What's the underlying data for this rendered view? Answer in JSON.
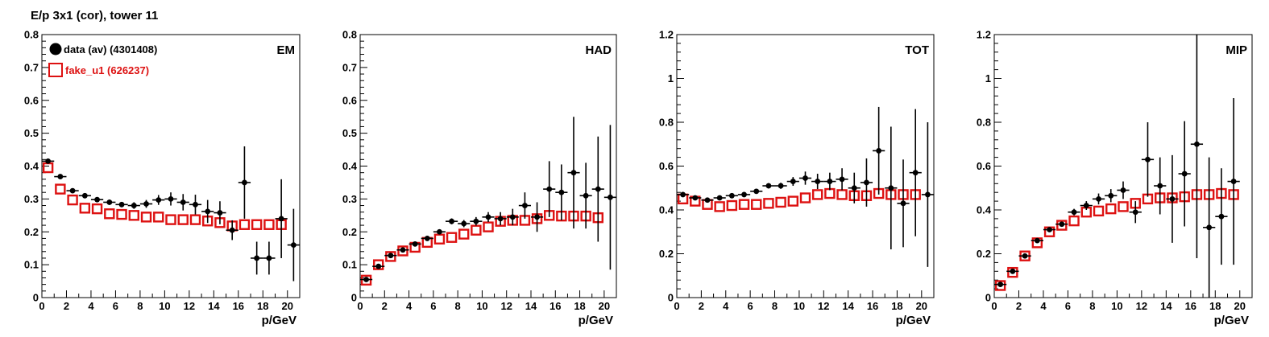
{
  "title": "E/p 3x1 (cor), tower 11",
  "colors": {
    "data": "#000000",
    "fake": "#dd1111",
    "axis": "#000000",
    "background": "#ffffff"
  },
  "legend": [
    {
      "label": "data (av) (4301408)",
      "marker": "filled-circle",
      "color": "#000000"
    },
    {
      "label": "fake_u1 (626237)",
      "marker": "open-square",
      "color": "#dd1111"
    }
  ],
  "chart_data": [
    {
      "type": "scatter",
      "panel_label": "EM",
      "xlabel": "p/GeV",
      "ylabel": "",
      "xlim": [
        0,
        21
      ],
      "ylim": [
        0,
        0.8
      ],
      "xticks": [
        0,
        2,
        4,
        6,
        8,
        10,
        12,
        14,
        16,
        18,
        20
      ],
      "yticks": [
        0,
        0.1,
        0.2,
        0.3,
        0.4,
        0.5,
        0.6,
        0.7,
        0.8
      ],
      "ytick_labels": [
        "0",
        "0.1",
        "0.2",
        "0.3",
        "0.4",
        "0.5",
        "0.6",
        "0.7",
        "0.8"
      ],
      "grid": false,
      "legend_position": "top-left",
      "series": [
        {
          "name": "data (av) (4301408)",
          "marker": "filled-circle",
          "x": [
            0.5,
            1.5,
            2.5,
            3.5,
            4.5,
            5.5,
            6.5,
            7.5,
            8.5,
            9.5,
            10.5,
            11.5,
            12.5,
            13.5,
            14.5,
            15.5,
            16.5,
            17.5,
            18.5,
            19.5,
            20.5
          ],
          "y": [
            0.415,
            0.368,
            0.325,
            0.31,
            0.298,
            0.29,
            0.283,
            0.28,
            0.285,
            0.297,
            0.3,
            0.29,
            0.283,
            0.262,
            0.258,
            0.205,
            0.35,
            0.12,
            0.12,
            0.24,
            0.16
          ],
          "yerr": [
            0.005,
            0.005,
            0.005,
            0.006,
            0.007,
            0.008,
            0.008,
            0.01,
            0.012,
            0.015,
            0.02,
            0.025,
            0.03,
            0.035,
            0.035,
            0.03,
            0.11,
            0.05,
            0.05,
            0.12,
            0.11
          ]
        },
        {
          "name": "fake_u1 (626237)",
          "marker": "open-square",
          "x": [
            0.5,
            1.5,
            2.5,
            3.5,
            4.5,
            5.5,
            6.5,
            7.5,
            8.5,
            9.5,
            10.5,
            11.5,
            12.5,
            13.5,
            14.5,
            15.5,
            16.5,
            17.5,
            18.5,
            19.5
          ],
          "y": [
            0.395,
            0.33,
            0.297,
            0.272,
            0.27,
            0.255,
            0.253,
            0.25,
            0.245,
            0.245,
            0.237,
            0.237,
            0.237,
            0.233,
            0.228,
            0.218,
            0.222,
            0.222,
            0.222,
            0.222
          ]
        }
      ]
    },
    {
      "type": "scatter",
      "panel_label": "HAD",
      "xlabel": "p/GeV",
      "ylabel": "",
      "xlim": [
        0,
        21
      ],
      "ylim": [
        0,
        0.8
      ],
      "xticks": [
        0,
        2,
        4,
        6,
        8,
        10,
        12,
        14,
        16,
        18,
        20
      ],
      "yticks": [
        0,
        0.1,
        0.2,
        0.3,
        0.4,
        0.5,
        0.6,
        0.7,
        0.8
      ],
      "ytick_labels": [
        "0",
        "0.1",
        "0.2",
        "0.3",
        "0.4",
        "0.5",
        "0.6",
        "0.7",
        "0.8"
      ],
      "grid": false,
      "series": [
        {
          "name": "data (av) (4301408)",
          "marker": "filled-circle",
          "x": [
            0.5,
            1.5,
            2.5,
            3.5,
            4.5,
            5.5,
            6.5,
            7.5,
            8.5,
            9.5,
            10.5,
            11.5,
            12.5,
            13.5,
            14.5,
            15.5,
            16.5,
            17.5,
            18.5,
            19.5,
            20.5
          ],
          "y": [
            0.055,
            0.095,
            0.128,
            0.145,
            0.163,
            0.18,
            0.2,
            0.232,
            0.225,
            0.232,
            0.245,
            0.24,
            0.245,
            0.28,
            0.245,
            0.33,
            0.32,
            0.38,
            0.31,
            0.33,
            0.305
          ],
          "yerr": [
            0.004,
            0.005,
            0.005,
            0.006,
            0.006,
            0.007,
            0.008,
            0.009,
            0.011,
            0.013,
            0.015,
            0.02,
            0.025,
            0.04,
            0.045,
            0.085,
            0.085,
            0.17,
            0.1,
            0.16,
            0.22
          ]
        },
        {
          "name": "fake_u1 (626237)",
          "marker": "open-square",
          "x": [
            0.5,
            1.5,
            2.5,
            3.5,
            4.5,
            5.5,
            6.5,
            7.5,
            8.5,
            9.5,
            10.5,
            11.5,
            12.5,
            13.5,
            14.5,
            15.5,
            16.5,
            17.5,
            18.5,
            19.5
          ],
          "y": [
            0.053,
            0.1,
            0.125,
            0.142,
            0.153,
            0.168,
            0.178,
            0.183,
            0.193,
            0.205,
            0.215,
            0.232,
            0.235,
            0.235,
            0.24,
            0.25,
            0.248,
            0.248,
            0.248,
            0.243
          ]
        }
      ]
    },
    {
      "type": "scatter",
      "panel_label": "TOT",
      "xlabel": "p/GeV",
      "ylabel": "",
      "xlim": [
        0,
        21
      ],
      "ylim": [
        0,
        1.2
      ],
      "xticks": [
        0,
        2,
        4,
        6,
        8,
        10,
        12,
        14,
        16,
        18,
        20
      ],
      "yticks": [
        0,
        0.2,
        0.4,
        0.6,
        0.8,
        1.0,
        1.2
      ],
      "ytick_labels": [
        "0",
        "0.2",
        "0.4",
        "0.6",
        "0.8",
        "1",
        "1.2"
      ],
      "grid": false,
      "series": [
        {
          "name": "data (av) (4301408)",
          "marker": "filled-circle",
          "x": [
            0.5,
            1.5,
            2.5,
            3.5,
            4.5,
            5.5,
            6.5,
            7.5,
            8.5,
            9.5,
            10.5,
            11.5,
            12.5,
            13.5,
            14.5,
            15.5,
            16.5,
            17.5,
            18.5,
            19.5,
            20.5
          ],
          "y": [
            0.47,
            0.455,
            0.445,
            0.455,
            0.465,
            0.47,
            0.485,
            0.51,
            0.51,
            0.53,
            0.545,
            0.53,
            0.53,
            0.54,
            0.5,
            0.525,
            0.67,
            0.5,
            0.43,
            0.57,
            0.47
          ],
          "yerr": [
            0.005,
            0.006,
            0.006,
            0.007,
            0.008,
            0.009,
            0.01,
            0.012,
            0.014,
            0.02,
            0.03,
            0.035,
            0.04,
            0.05,
            0.07,
            0.11,
            0.2,
            0.28,
            0.2,
            0.29,
            0.33
          ]
        },
        {
          "name": "fake_u1 (626237)",
          "marker": "open-square",
          "x": [
            0.5,
            1.5,
            2.5,
            3.5,
            4.5,
            5.5,
            6.5,
            7.5,
            8.5,
            9.5,
            10.5,
            11.5,
            12.5,
            13.5,
            14.5,
            15.5,
            16.5,
            17.5,
            18.5,
            19.5
          ],
          "y": [
            0.45,
            0.44,
            0.425,
            0.415,
            0.42,
            0.425,
            0.425,
            0.43,
            0.435,
            0.44,
            0.455,
            0.47,
            0.475,
            0.47,
            0.465,
            0.465,
            0.475,
            0.47,
            0.47,
            0.47
          ]
        }
      ]
    },
    {
      "type": "scatter",
      "panel_label": "MIP",
      "xlabel": "p/GeV",
      "ylabel": "",
      "xlim": [
        0,
        21
      ],
      "ylim": [
        0,
        1.2
      ],
      "xticks": [
        0,
        2,
        4,
        6,
        8,
        10,
        12,
        14,
        16,
        18,
        20
      ],
      "yticks": [
        0,
        0.2,
        0.4,
        0.6,
        0.8,
        1.0,
        1.2
      ],
      "ytick_labels": [
        "0",
        "0.2",
        "0.4",
        "0.6",
        "0.8",
        "1",
        "1.2"
      ],
      "grid": false,
      "series": [
        {
          "name": "data (av) (4301408)",
          "marker": "filled-circle",
          "x": [
            0.5,
            1.5,
            2.5,
            3.5,
            4.5,
            5.5,
            6.5,
            7.5,
            8.5,
            9.5,
            10.5,
            11.5,
            12.5,
            13.5,
            14.5,
            15.5,
            16.5,
            17.5,
            18.5,
            19.5
          ],
          "y": [
            0.06,
            0.12,
            0.19,
            0.26,
            0.31,
            0.335,
            0.39,
            0.42,
            0.45,
            0.465,
            0.49,
            0.39,
            0.63,
            0.51,
            0.45,
            0.565,
            0.7,
            0.32,
            0.37,
            0.53
          ],
          "yerr": [
            0.005,
            0.006,
            0.008,
            0.009,
            0.01,
            0.012,
            0.015,
            0.02,
            0.025,
            0.03,
            0.04,
            0.05,
            0.17,
            0.13,
            0.2,
            0.24,
            0.52,
            0.32,
            0.22,
            0.38
          ]
        },
        {
          "name": "fake_u1 (626237)",
          "marker": "open-square",
          "x": [
            0.5,
            1.5,
            2.5,
            3.5,
            4.5,
            5.5,
            6.5,
            7.5,
            8.5,
            9.5,
            10.5,
            11.5,
            12.5,
            13.5,
            14.5,
            15.5,
            16.5,
            17.5,
            18.5,
            19.5
          ],
          "y": [
            0.055,
            0.115,
            0.19,
            0.25,
            0.3,
            0.33,
            0.35,
            0.39,
            0.395,
            0.405,
            0.415,
            0.43,
            0.45,
            0.455,
            0.455,
            0.46,
            0.47,
            0.47,
            0.475,
            0.47
          ]
        }
      ]
    }
  ]
}
